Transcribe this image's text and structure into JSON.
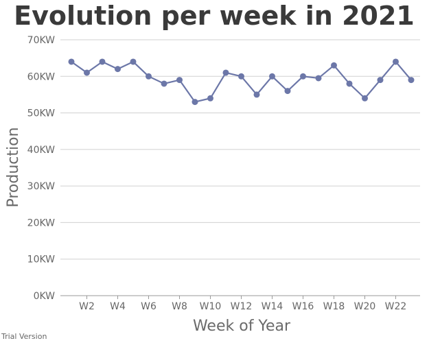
{
  "chart_data": {
    "type": "line",
    "title": "Evolution per week in 2021",
    "xlabel": "Week of Year",
    "ylabel": "Production",
    "ylim": [
      0,
      70
    ],
    "y_ticks": [
      "0KW",
      "10KW",
      "20KW",
      "30KW",
      "40KW",
      "50KW",
      "60KW",
      "70KW"
    ],
    "x_tick_labels": [
      "W2",
      "W4",
      "W6",
      "W8",
      "W10",
      "W12",
      "W14",
      "W16",
      "W18",
      "W20",
      "W22"
    ],
    "categories": [
      "W1",
      "W2",
      "W3",
      "W4",
      "W5",
      "W6",
      "W7",
      "W8",
      "W9",
      "W10",
      "W11",
      "W12",
      "W13",
      "W14",
      "W15",
      "W16",
      "W17",
      "W18",
      "W19",
      "W20",
      "W21",
      "W22",
      "W23"
    ],
    "series": [
      {
        "values": [
          64,
          61,
          64,
          62,
          64,
          60,
          58,
          59,
          53,
          54,
          61,
          60,
          55,
          60,
          56,
          60,
          59.5,
          63,
          58,
          54,
          59,
          64,
          59
        ]
      }
    ],
    "unit": "KW",
    "grid": true,
    "colors": {
      "line": "#6c77a8",
      "marker": "#6c77a8",
      "grid": "#d0d0d0",
      "axis": "#999999"
    }
  },
  "footer": {
    "text": "Trial Version"
  }
}
